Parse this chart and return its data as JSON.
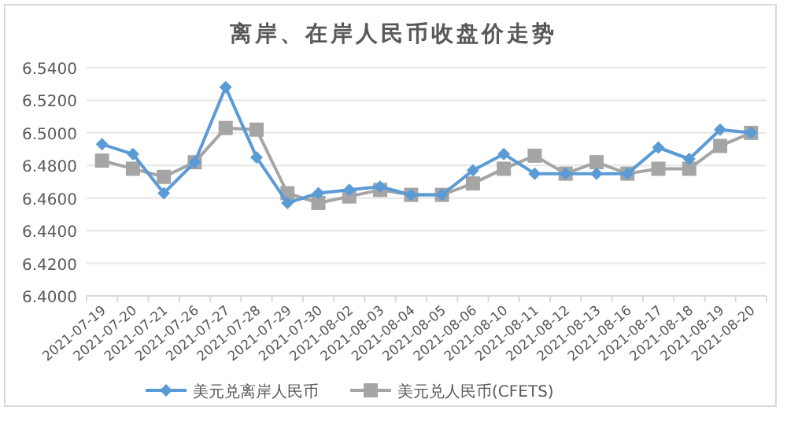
{
  "chart_data": {
    "type": "line",
    "title": "离岸、在岸人民币收盘价走势",
    "categories": [
      "2021-07-19",
      "2021-07-20",
      "2021-07-21",
      "2021-07-26",
      "2021-07-27",
      "2021-07-28",
      "2021-07-29",
      "2021-07-30",
      "2021-08-02",
      "2021-08-03",
      "2021-08-04",
      "2021-08-05",
      "2021-08-06",
      "2021-08-10",
      "2021-08-11",
      "2021-08-12",
      "2021-08-13",
      "2021-08-16",
      "2021-08-17",
      "2021-08-18",
      "2021-08-19",
      "2021-08-20"
    ],
    "series": [
      {
        "name": "美元兑离岸人民币",
        "color": "#5b9bd5",
        "marker": "diamond",
        "values": [
          6.493,
          6.487,
          6.463,
          6.482,
          6.528,
          6.485,
          6.457,
          6.463,
          6.465,
          6.467,
          6.462,
          6.462,
          6.477,
          6.487,
          6.475,
          6.475,
          6.475,
          6.475,
          6.491,
          6.484,
          6.502,
          6.5
        ]
      },
      {
        "name": "美元兑人民币(CFETS)",
        "color": "#a5a5a5",
        "marker": "square",
        "values": [
          6.483,
          6.478,
          6.473,
          6.482,
          6.503,
          6.502,
          6.463,
          6.457,
          6.461,
          6.465,
          6.462,
          6.462,
          6.469,
          6.478,
          6.486,
          6.475,
          6.482,
          6.475,
          6.478,
          6.478,
          6.492,
          6.5
        ]
      }
    ],
    "ylim": [
      6.4,
      6.54
    ],
    "yticks": [
      {
        "value": 6.4,
        "label": "6.4000"
      },
      {
        "value": 6.42,
        "label": "6.4200"
      },
      {
        "value": 6.44,
        "label": "6.4400"
      },
      {
        "value": 6.46,
        "label": "6.4600"
      },
      {
        "value": 6.48,
        "label": "6.4800"
      },
      {
        "value": 6.5,
        "label": "6.5000"
      },
      {
        "value": 6.52,
        "label": "6.5200"
      },
      {
        "value": 6.54,
        "label": "6.5400"
      }
    ],
    "grid": "y",
    "legend": "bottom",
    "line_style": "solid"
  }
}
